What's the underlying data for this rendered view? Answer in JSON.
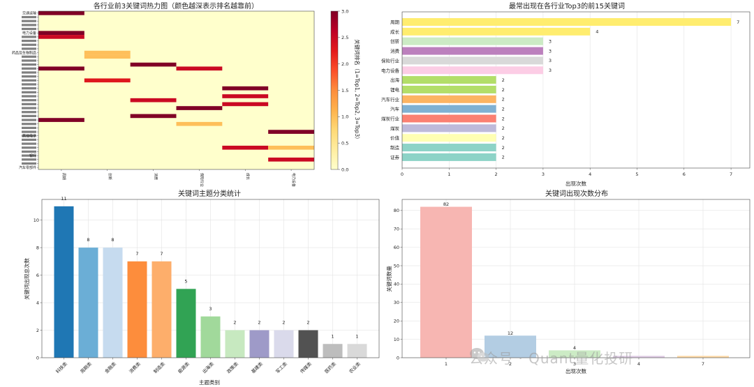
{
  "chart_data": [
    {
      "type": "heatmap",
      "title": "各行业前3关键词热力图（颜色越深表示排名越靠前）",
      "colorbar_label": "关键词排名（1=Top1, 2=Top2, 3=Top3）",
      "colorbar_ticks": [
        0.0,
        0.5,
        1.0,
        1.5,
        2.0,
        2.5,
        3.0
      ],
      "colorbar_tick_labels": [
        "0.0",
        "0.5",
        "1.0",
        "1.5",
        "2.0",
        "2.5",
        "3.0"
      ],
      "vmin": 0,
      "vmax": 3,
      "xlabels": [
        "周期",
        "创新",
        "消费",
        "保险行业",
        "成长",
        "电力设备"
      ],
      "rows": 40,
      "row_labels_legible": {
        "0": "交通运输",
        "5": "电力设备",
        "10": "药品及生物制品",
        "39": "汽车零部件"
      },
      "row_labels_other": [
        "其他电子",
        "银行"
      ],
      "cells": [
        [
          0,
          0,
          3
        ],
        [
          5,
          0,
          3
        ],
        [
          6,
          0,
          2.5
        ],
        [
          14,
          0,
          3
        ],
        [
          27,
          0,
          3
        ],
        [
          10,
          1,
          1
        ],
        [
          11,
          1,
          1
        ],
        [
          17,
          1,
          2.3
        ],
        [
          13,
          2,
          3
        ],
        [
          22,
          2,
          2.5
        ],
        [
          26,
          2,
          3
        ],
        [
          14,
          3,
          2.5
        ],
        [
          24,
          3,
          3
        ],
        [
          28,
          3,
          1
        ],
        [
          19,
          4,
          3
        ],
        [
          21,
          4,
          2.5
        ],
        [
          23,
          4,
          2.5
        ],
        [
          34,
          4,
          2.5
        ],
        [
          30,
          5,
          3
        ],
        [
          34,
          5,
          1
        ],
        [
          37,
          5,
          2.5
        ]
      ]
    },
    {
      "type": "bar",
      "orientation": "horizontal",
      "title": "最常出现在各行业Top3的前15关键词",
      "xlabel": "出现次数",
      "xlim": [
        0,
        7.4
      ],
      "xticks": [
        0,
        1,
        2,
        3,
        4,
        5,
        6,
        7
      ],
      "categories": [
        "周期",
        "成长",
        "创新",
        "消费",
        "保险行业",
        "电力设备",
        "出海",
        "锂电",
        "汽车行业",
        "汽车",
        "煤炭行业",
        "煤炭",
        "价值",
        "制造",
        "证券"
      ],
      "values": [
        7,
        4,
        3,
        3,
        3,
        3,
        2,
        2,
        2,
        2,
        2,
        2,
        2,
        2,
        2
      ],
      "colors": [
        "#ffed6f",
        "#ffed6f",
        "#ccebc5",
        "#bc80bd",
        "#d9d9d9",
        "#fccde5",
        "#b3de69",
        "#b3de69",
        "#fdb462",
        "#80b1d3",
        "#fb8072",
        "#bebada",
        "#ffffb3",
        "#8dd3c7",
        "#8dd3c7"
      ]
    },
    {
      "type": "bar",
      "title": "关键词主题分类统计",
      "xlabel": "主题类别",
      "ylabel": "关键词出现总次数",
      "ylim": [
        0,
        11.5
      ],
      "yticks": [
        0,
        2,
        4,
        6,
        8,
        10
      ],
      "categories": [
        "科技类",
        "周期类",
        "金融类",
        "消费类",
        "制造类",
        "能源类",
        "出海类",
        "政策类",
        "基建类",
        "军工类",
        "传媒类",
        "医药类",
        "农业类"
      ],
      "values": [
        11,
        8,
        8,
        7,
        7,
        5,
        3,
        2,
        2,
        2,
        2,
        1,
        1
      ],
      "colors": [
        "#1f77b4",
        "#6baed6",
        "#c6dbef",
        "#fd8d3c",
        "#fdae6b",
        "#31a354",
        "#a1d99b",
        "#c7e9c0",
        "#9e9ac8",
        "#dadaeb",
        "#525252",
        "#bdbdbd",
        "#d9d9d9"
      ]
    },
    {
      "type": "bar",
      "title": "关键词出现次数分布",
      "xlabel": "出现次数",
      "ylabel": "关键词数量",
      "ylim": [
        0,
        86
      ],
      "yticks": [
        0,
        10,
        20,
        30,
        40,
        50,
        60,
        70,
        80
      ],
      "categories": [
        "1",
        "2",
        "3",
        "4",
        "7"
      ],
      "values": [
        82,
        12,
        4,
        1,
        1
      ],
      "data_labels": [
        "82",
        "12",
        "4",
        "",
        ""
      ],
      "colors": [
        "#f7b6b2",
        "#b3cde3",
        "#ccebc5",
        "#decbe4",
        "#fed9a6"
      ]
    }
  ],
  "watermark": "公众号 · Quant量化投研"
}
